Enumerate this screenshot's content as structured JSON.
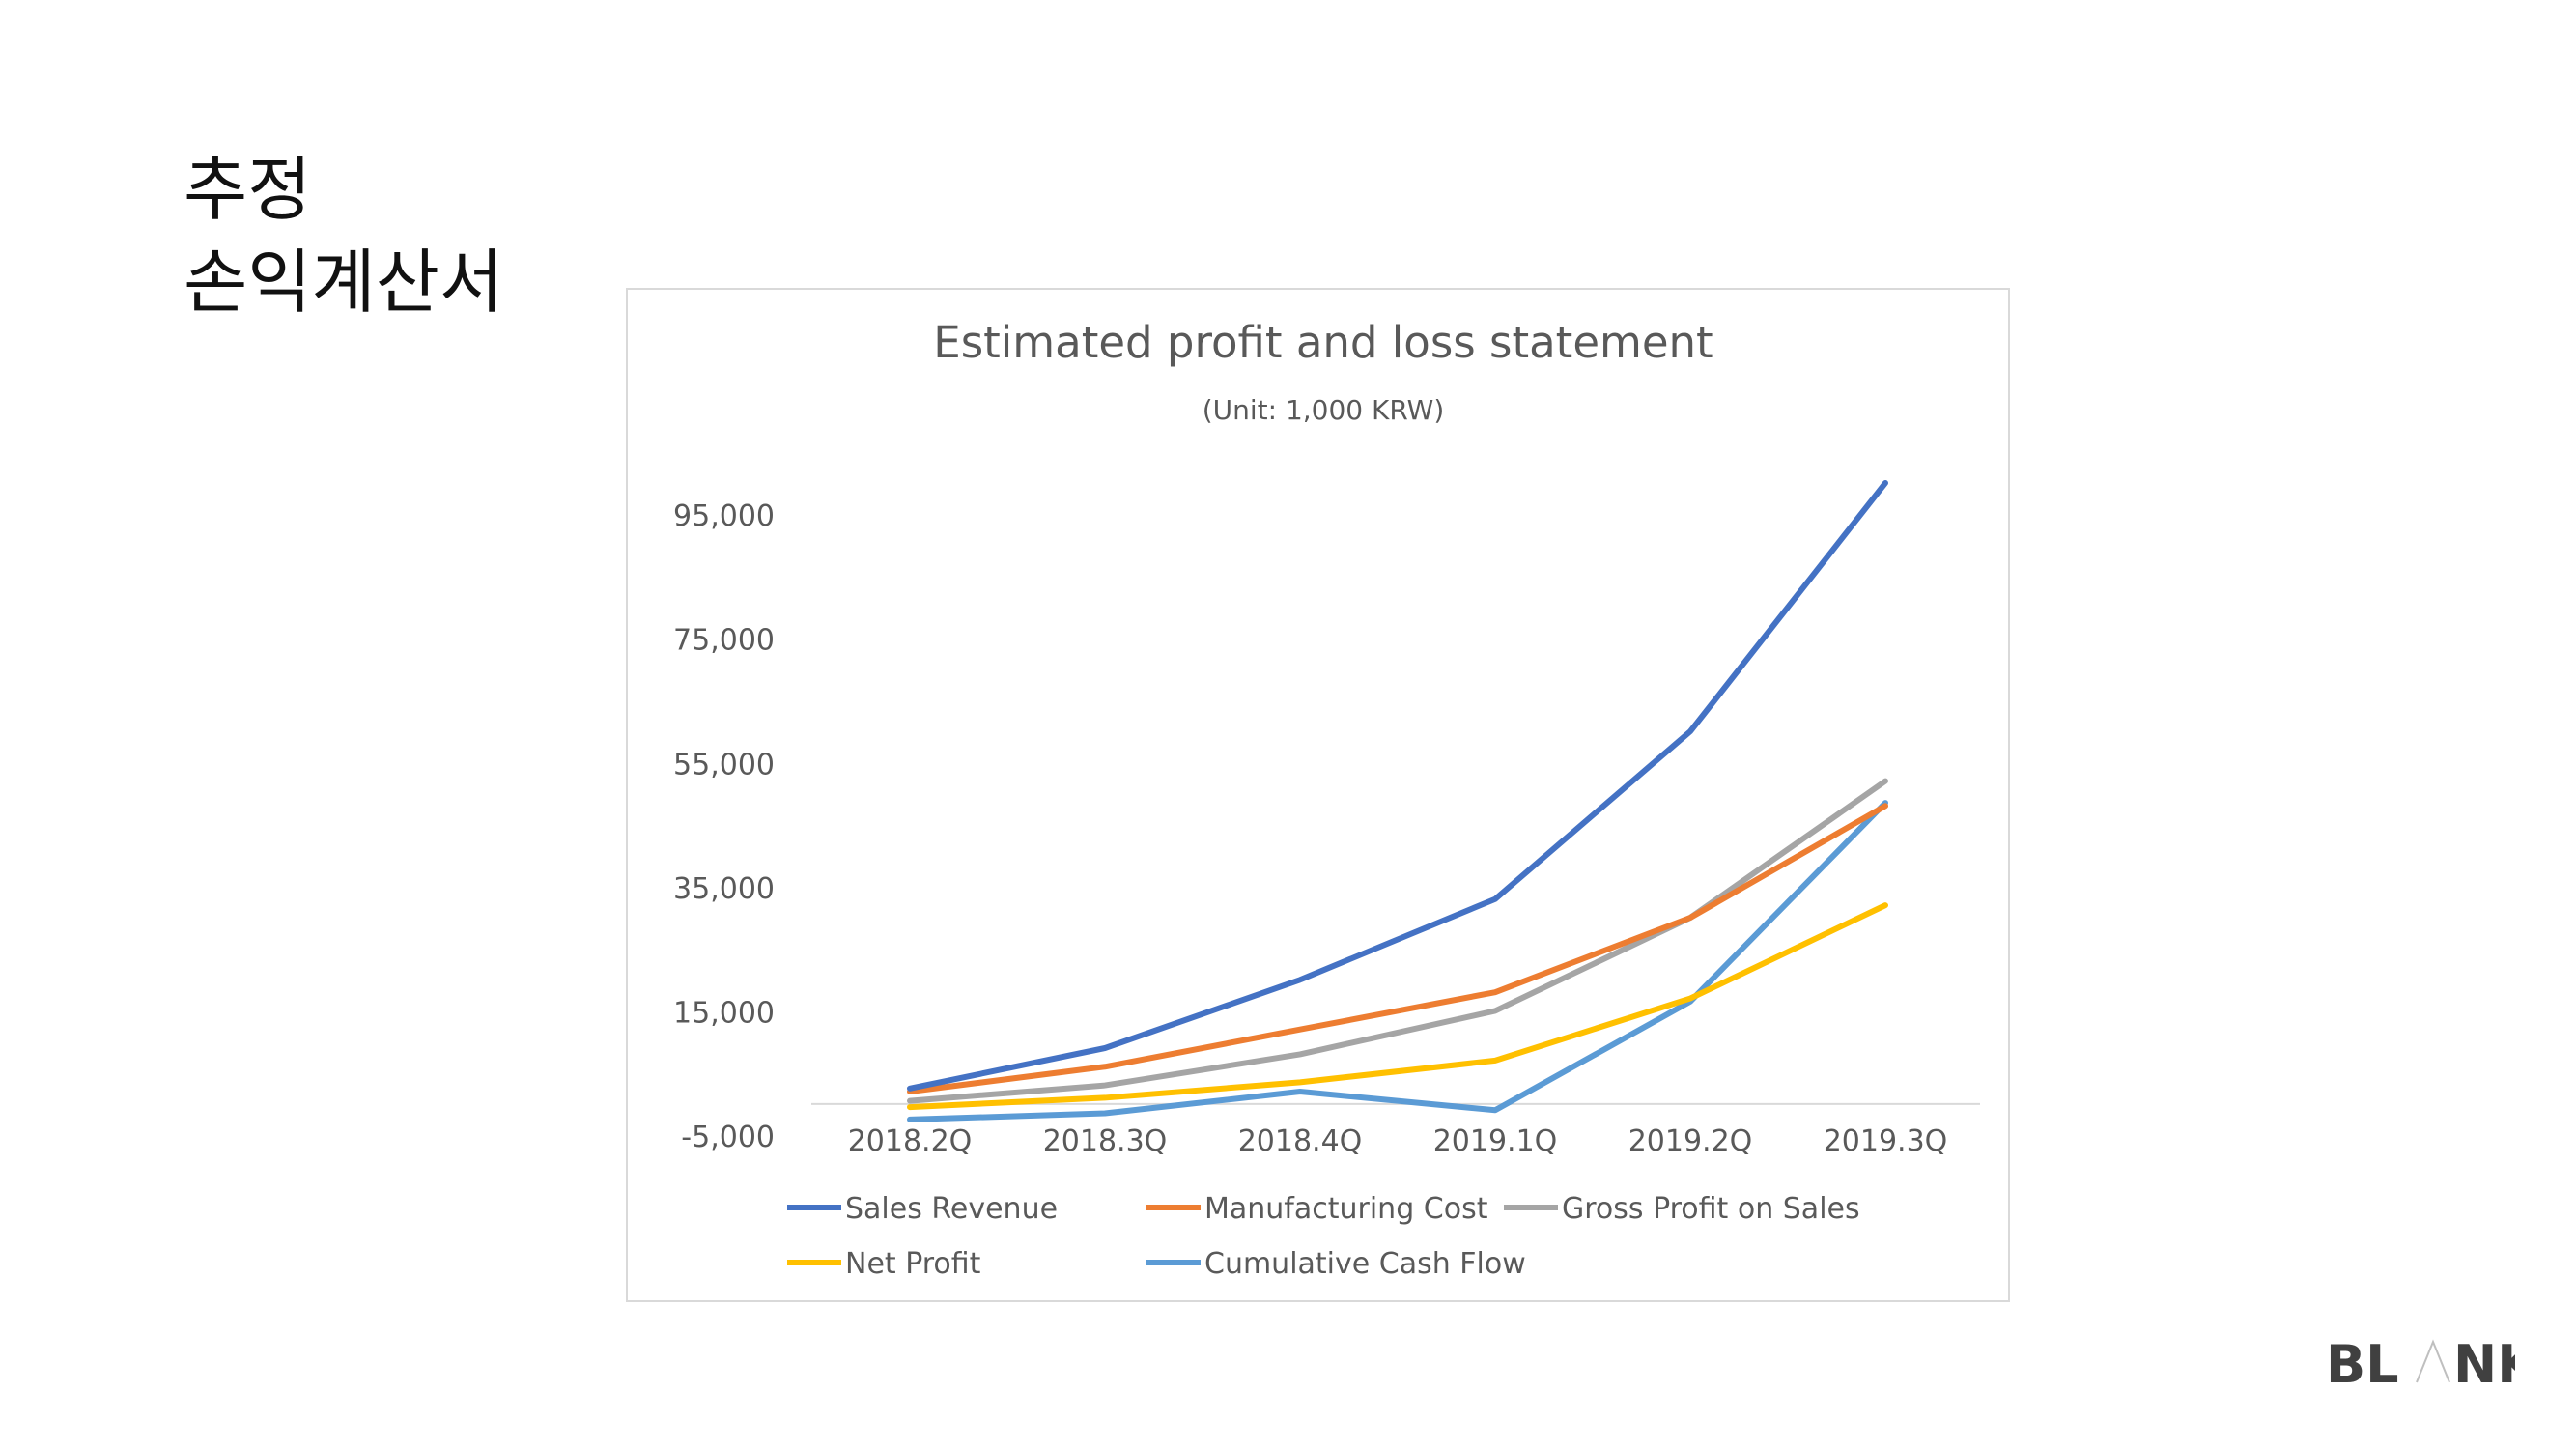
{
  "slide": {
    "title_line1": "추정",
    "title_line2": "손익계산서"
  },
  "brand": {
    "logo_text": "BLANK",
    "color": "#404040"
  },
  "chart_data": {
    "type": "line",
    "title": "Estimated profit and loss statement",
    "subtitle": "(Unit: 1,000 KRW)",
    "categories": [
      "2018.2Q",
      "2018.3Q",
      "2018.4Q",
      "2019.1Q",
      "2019.2Q",
      "2019.3Q"
    ],
    "yticks": [
      95000,
      75000,
      55000,
      35000,
      15000,
      -5000
    ],
    "ytick_labels": [
      "95,000",
      "75,000",
      "55,000",
      "35,000",
      "15,000",
      "-5,000"
    ],
    "ylim": [
      -5000,
      100000
    ],
    "grid": false,
    "legend_position": "bottom",
    "series": [
      {
        "name": "Sales Revenue",
        "color": "#4472C4",
        "values": [
          2500,
          9000,
          20000,
          33000,
          60000,
          100000
        ]
      },
      {
        "name": "Manufacturing Cost",
        "color": "#ED7D31",
        "values": [
          2000,
          6000,
          12000,
          18000,
          30000,
          48000
        ]
      },
      {
        "name": "Gross Profit on Sales",
        "color": "#A5A5A5",
        "values": [
          500,
          3000,
          8000,
          15000,
          30000,
          52000
        ]
      },
      {
        "name": "Net Profit",
        "color": "#FFC000",
        "values": [
          -500,
          1000,
          3500,
          7000,
          17000,
          32000
        ]
      },
      {
        "name": "Cumulative Cash Flow",
        "color": "#5B9BD5",
        "values": [
          -2500,
          -1500,
          2000,
          -1000,
          16500,
          48500
        ]
      }
    ]
  }
}
